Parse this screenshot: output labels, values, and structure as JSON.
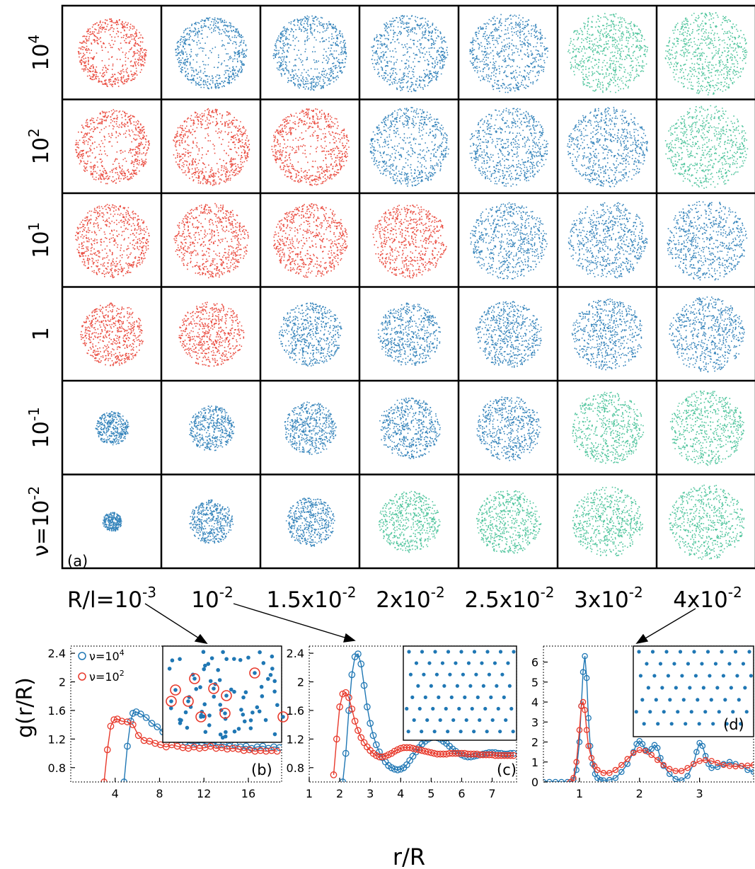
{
  "chart_data": [
    {
      "panel": "(a)",
      "type": "scatter",
      "row_labels": [
        {
          "base": "10",
          "exp": "4"
        },
        {
          "base": "10",
          "exp": "2"
        },
        {
          "base": "10",
          "exp": "1"
        },
        {
          "base": "1",
          "exp": ""
        },
        {
          "base": "10",
          "exp": "-1"
        },
        {
          "base": "ν=10",
          "exp": "-2"
        }
      ],
      "col_labels": [
        {
          "base": "R/l=10",
          "exp": "-3"
        },
        {
          "base": "10",
          "exp": "-2"
        },
        {
          "base": "1.5x10",
          "exp": "-2"
        },
        {
          "base": "2x10",
          "exp": "-2"
        },
        {
          "base": "2.5x10",
          "exp": "-2"
        },
        {
          "base": "3x10",
          "exp": "-2"
        },
        {
          "base": "4x10",
          "exp": "-2"
        }
      ],
      "colors": {
        "red": "#e8392b",
        "blue": "#1f77b4",
        "green": "#3dbf92"
      },
      "cells": [
        [
          {
            "c": "red",
            "shape": "ring",
            "size": 0.78,
            "hole": 0.45
          },
          {
            "c": "blue",
            "shape": "ring",
            "size": 0.82,
            "hole": 0.5
          },
          {
            "c": "blue",
            "shape": "ring",
            "size": 0.85,
            "hole": 0.45
          },
          {
            "c": "blue",
            "shape": "ring",
            "size": 0.88,
            "hole": 0.35
          },
          {
            "c": "blue",
            "shape": "ring",
            "size": 0.9,
            "hole": 0.25
          },
          {
            "c": "green",
            "shape": "disk",
            "size": 0.92,
            "hole": 0
          },
          {
            "c": "green",
            "shape": "disk",
            "size": 0.95,
            "hole": 0
          }
        ],
        [
          {
            "c": "red",
            "shape": "ring",
            "size": 0.85,
            "hole": 0.45
          },
          {
            "c": "red",
            "shape": "ring",
            "size": 0.88,
            "hole": 0.45
          },
          {
            "c": "red",
            "shape": "ring",
            "size": 0.88,
            "hole": 0.4
          },
          {
            "c": "blue",
            "shape": "ring",
            "size": 0.9,
            "hole": 0.3
          },
          {
            "c": "blue",
            "shape": "ring",
            "size": 0.9,
            "hole": 0.25
          },
          {
            "c": "blue",
            "shape": "disk",
            "size": 0.92,
            "hole": 0
          },
          {
            "c": "green",
            "shape": "disk",
            "size": 0.95,
            "hole": 0
          }
        ],
        [
          {
            "c": "red",
            "shape": "ring",
            "size": 0.85,
            "hole": 0.35
          },
          {
            "c": "red",
            "shape": "ring",
            "size": 0.85,
            "hole": 0.3
          },
          {
            "c": "red",
            "shape": "ring",
            "size": 0.85,
            "hole": 0.3
          },
          {
            "c": "red",
            "shape": "disk",
            "size": 0.85,
            "hole": 0
          },
          {
            "c": "blue",
            "shape": "disk",
            "size": 0.88,
            "hole": 0
          },
          {
            "c": "blue",
            "shape": "disk",
            "size": 0.9,
            "hole": 0
          },
          {
            "c": "blue",
            "shape": "disk",
            "size": 0.92,
            "hole": 0
          }
        ],
        [
          {
            "c": "red",
            "shape": "disk",
            "size": 0.72,
            "hole": 0
          },
          {
            "c": "red",
            "shape": "disk",
            "size": 0.74,
            "hole": 0
          },
          {
            "c": "blue",
            "shape": "disk",
            "size": 0.72,
            "hole": 0
          },
          {
            "c": "blue",
            "shape": "disk",
            "size": 0.72,
            "hole": 0
          },
          {
            "c": "blue",
            "shape": "disk",
            "size": 0.76,
            "hole": 0
          },
          {
            "c": "blue",
            "shape": "disk",
            "size": 0.82,
            "hole": 0
          },
          {
            "c": "blue",
            "shape": "disk",
            "size": 0.86,
            "hole": 0
          }
        ],
        [
          {
            "c": "blue",
            "shape": "disk",
            "size": 0.38,
            "hole": 0
          },
          {
            "c": "blue",
            "shape": "disk",
            "size": 0.52,
            "hole": 0
          },
          {
            "c": "blue",
            "shape": "disk",
            "size": 0.6,
            "hole": 0
          },
          {
            "c": "blue",
            "shape": "disk",
            "size": 0.7,
            "hole": 0
          },
          {
            "c": "blue",
            "shape": "disk",
            "size": 0.74,
            "hole": 0
          },
          {
            "c": "green",
            "shape": "disk",
            "size": 0.82,
            "hole": 0
          },
          {
            "c": "green",
            "shape": "disk",
            "size": 0.86,
            "hole": 0
          }
        ],
        [
          {
            "c": "blue",
            "shape": "disk",
            "size": 0.22,
            "hole": 0
          },
          {
            "c": "blue",
            "shape": "disk",
            "size": 0.5,
            "hole": 0
          },
          {
            "c": "blue",
            "shape": "disk",
            "size": 0.56,
            "hole": 0
          },
          {
            "c": "green",
            "shape": "disk",
            "size": 0.7,
            "hole": 0
          },
          {
            "c": "green",
            "shape": "disk",
            "size": 0.74,
            "hole": 0
          },
          {
            "c": "green",
            "shape": "disk",
            "size": 0.8,
            "hole": 0
          },
          {
            "c": "green",
            "shape": "disk",
            "size": 0.86,
            "hole": 0
          }
        ]
      ]
    },
    {
      "panel": "(b)",
      "type": "line",
      "xlim": [
        0,
        19
      ],
      "ylim": [
        0.6,
        2.5
      ],
      "xticks": [
        4,
        8,
        12,
        16
      ],
      "yticks": [
        0.8,
        1.2,
        1.6,
        2,
        2.4
      ],
      "ylabel": "g(r/R)",
      "legend": [
        {
          "base": "ν=10",
          "exp": "4",
          "color": "#1f77b4"
        },
        {
          "base": "ν=10",
          "exp": "2",
          "color": "#e8392b"
        }
      ],
      "series": [
        {
          "color": "#1f77b4",
          "x": [
            4.8,
            5.1,
            5.4,
            5.6,
            5.9,
            6.3,
            6.8,
            7.3,
            7.8,
            8.3,
            8.8,
            9.3,
            9.8,
            10.3,
            10.8,
            11.3,
            11.8,
            12.3,
            12.8,
            13.3,
            13.8,
            14.3,
            14.8,
            15.3,
            15.8,
            16.3,
            16.8,
            17.3,
            17.8,
            18.3,
            18.8
          ],
          "y": [
            0.6,
            1.1,
            1.45,
            1.56,
            1.58,
            1.55,
            1.5,
            1.42,
            1.37,
            1.3,
            1.26,
            1.22,
            1.19,
            1.16,
            1.14,
            1.14,
            1.15,
            1.13,
            1.15,
            1.12,
            1.13,
            1.1,
            1.12,
            1.09,
            1.1,
            1.07,
            1.09,
            1.1,
            1.07,
            1.09,
            1.08
          ]
        },
        {
          "color": "#e8392b",
          "x": [
            3.0,
            3.3,
            3.6,
            3.9,
            4.2,
            4.6,
            5.1,
            5.6,
            6.1,
            6.6,
            7.1,
            7.6,
            8.1,
            8.6,
            9.1,
            9.6,
            10.1,
            10.6,
            11.1,
            11.6,
            12.1,
            12.6,
            13.1,
            13.6,
            14.1,
            14.6,
            15.1,
            15.6,
            16.1,
            16.6,
            17.1,
            17.6,
            18.1,
            18.6
          ],
          "y": [
            0.6,
            1.05,
            1.38,
            1.47,
            1.48,
            1.45,
            1.44,
            1.4,
            1.25,
            1.18,
            1.17,
            1.14,
            1.12,
            1.09,
            1.12,
            1.1,
            1.08,
            1.07,
            1.09,
            1.07,
            1.08,
            1.1,
            1.07,
            1.08,
            1.06,
            1.07,
            1.06,
            1.04,
            1.05,
            1.03,
            1.04,
            1.03,
            1.04,
            1.03
          ]
        }
      ],
      "inset": {
        "type": "scatter",
        "color": "#1f77b4",
        "highlight": "#e8392b"
      }
    },
    {
      "panel": "(c)",
      "type": "line",
      "xlim": [
        1,
        7.8
      ],
      "ylim": [
        0.6,
        2.5
      ],
      "xticks": [
        1,
        2,
        3,
        4,
        5,
        6,
        7
      ],
      "yticks": [
        0.8,
        1.2,
        1.6,
        2,
        2.4
      ],
      "series": [
        {
          "color": "#1f77b4",
          "x": [
            2.1,
            2.2,
            2.3,
            2.4,
            2.5,
            2.6,
            2.7,
            2.8,
            2.9,
            3.0,
            3.1,
            3.2,
            3.3,
            3.4,
            3.5,
            3.6,
            3.7,
            3.8,
            3.9,
            4.0,
            4.1,
            4.2,
            4.3,
            4.4,
            4.5,
            4.6,
            4.7,
            4.8,
            4.9,
            5.0,
            5.1,
            5.2,
            5.3,
            5.4,
            5.5,
            5.6,
            5.7,
            5.8,
            5.9,
            6.0,
            6.1,
            6.2,
            6.3,
            6.4,
            6.5,
            6.6,
            6.7,
            6.8,
            6.9,
            7.0,
            7.1,
            7.2,
            7.3,
            7.4,
            7.5,
            7.6,
            7.7
          ],
          "y": [
            0.6,
            1.0,
            1.6,
            2.1,
            2.35,
            2.39,
            2.25,
            1.95,
            1.65,
            1.42,
            1.25,
            1.12,
            1.02,
            0.94,
            0.88,
            0.83,
            0.8,
            0.78,
            0.77,
            0.78,
            0.8,
            0.84,
            0.9,
            0.96,
            1.02,
            1.08,
            1.13,
            1.17,
            1.2,
            1.22,
            1.23,
            1.22,
            1.2,
            1.17,
            1.14,
            1.1,
            1.06,
            1.03,
            1.0,
            0.98,
            0.96,
            0.95,
            0.95,
            0.96,
            0.97,
            0.98,
            0.99,
            1.0,
            1.01,
            1.01,
            1.01,
            1.0,
            1.0,
            0.99,
            0.99,
            1.0,
            1.0
          ]
        },
        {
          "color": "#e8392b",
          "x": [
            1.8,
            1.9,
            2.0,
            2.1,
            2.2,
            2.3,
            2.4,
            2.5,
            2.6,
            2.7,
            2.8,
            2.9,
            3.0,
            3.1,
            3.2,
            3.3,
            3.4,
            3.5,
            3.6,
            3.7,
            3.8,
            3.9,
            4.0,
            4.1,
            4.2,
            4.3,
            4.4,
            4.5,
            4.6,
            4.7,
            4.8,
            4.9,
            5.0,
            5.1,
            5.2,
            5.3,
            5.4,
            5.5,
            5.6,
            5.7,
            5.8,
            5.9,
            6.0,
            6.1,
            6.2,
            6.3,
            6.4,
            6.5,
            6.6,
            6.7,
            6.8,
            6.9,
            7.0,
            7.1,
            7.2,
            7.3,
            7.4,
            7.5,
            7.6,
            7.7
          ],
          "y": [
            0.7,
            1.2,
            1.65,
            1.83,
            1.85,
            1.78,
            1.62,
            1.45,
            1.32,
            1.22,
            1.15,
            1.09,
            1.04,
            1.0,
            0.97,
            0.95,
            0.95,
            0.96,
            0.98,
            1.0,
            1.03,
            1.05,
            1.07,
            1.08,
            1.08,
            1.08,
            1.07,
            1.06,
            1.05,
            1.04,
            1.03,
            1.02,
            1.01,
            1.0,
            0.99,
            0.99,
            0.99,
            0.99,
            1.0,
            1.0,
            1.0,
            1.0,
            1.0,
            1.0,
            0.99,
            0.99,
            0.99,
            0.99,
            0.98,
            0.98,
            0.98,
            0.98,
            0.98,
            0.97,
            0.97,
            0.97,
            0.97,
            0.97,
            0.97,
            0.97
          ]
        }
      ],
      "inset": {
        "type": "scatter",
        "color": "#1f77b4"
      }
    },
    {
      "panel": "(d)",
      "type": "line",
      "xlim": [
        0.4,
        3.9
      ],
      "ylim": [
        0,
        6.8
      ],
      "xticks": [
        1,
        2,
        3
      ],
      "yticks": [
        0,
        1,
        2,
        3,
        4,
        5,
        6
      ],
      "series": [
        {
          "color": "#1f77b4",
          "x": [
            0.4,
            0.5,
            0.6,
            0.7,
            0.8,
            0.85,
            0.9,
            0.95,
            1.0,
            1.03,
            1.06,
            1.09,
            1.12,
            1.15,
            1.18,
            1.22,
            1.26,
            1.3,
            1.35,
            1.4,
            1.5,
            1.6,
            1.7,
            1.8,
            1.9,
            1.95,
            2.0,
            2.05,
            2.1,
            2.15,
            2.2,
            2.25,
            2.3,
            2.35,
            2.4,
            2.5,
            2.6,
            2.7,
            2.8,
            2.9,
            2.95,
            3.0,
            3.05,
            3.1,
            3.15,
            3.2,
            3.3,
            3.4,
            3.5,
            3.6,
            3.7,
            3.8,
            3.9
          ],
          "y": [
            0,
            0,
            0,
            0,
            0,
            0,
            0.1,
            0.6,
            2.0,
            3.8,
            5.5,
            6.3,
            5.2,
            3.2,
            1.8,
            0.9,
            0.4,
            0.2,
            0.1,
            0.08,
            0.1,
            0.2,
            0.5,
            0.9,
            1.5,
            1.9,
            2.05,
            1.9,
            1.6,
            1.5,
            1.65,
            1.85,
            1.7,
            1.2,
            0.8,
            0.4,
            0.15,
            0.08,
            0.3,
            0.9,
            1.5,
            1.95,
            1.8,
            1.3,
            0.9,
            0.7,
            0.75,
            0.9,
            1.0,
            0.9,
            0.8,
            0.6,
            0.5
          ]
        },
        {
          "color": "#e8392b",
          "x": [
            0.85,
            0.9,
            0.95,
            1.0,
            1.03,
            1.06,
            1.09,
            1.12,
            1.15,
            1.2,
            1.25,
            1.3,
            1.4,
            1.5,
            1.6,
            1.7,
            1.8,
            1.9,
            2.0,
            2.1,
            2.2,
            2.3,
            2.4,
            2.5,
            2.6,
            2.7,
            2.8,
            2.9,
            3.0,
            3.1,
            3.2,
            3.3,
            3.4,
            3.5,
            3.6,
            3.7,
            3.8,
            3.9
          ],
          "y": [
            0,
            0.2,
            1.0,
            2.6,
            3.8,
            4.0,
            3.6,
            2.6,
            1.8,
            1.2,
            0.8,
            0.6,
            0.45,
            0.45,
            0.6,
            0.85,
            1.15,
            1.45,
            1.6,
            1.55,
            1.35,
            1.1,
            0.85,
            0.65,
            0.55,
            0.55,
            0.7,
            0.9,
            1.05,
            1.1,
            1.05,
            0.95,
            0.85,
            0.8,
            0.78,
            0.8,
            0.82,
            0.85
          ]
        }
      ],
      "inset": {
        "type": "scatter",
        "color": "#1f77b4"
      }
    }
  ],
  "labels": {
    "panel_a": "(a)",
    "panel_b": "(b)",
    "panel_c": "(c)",
    "panel_d": "(d)",
    "ylabel": "g(r/R)",
    "xlabel": "r/R"
  }
}
